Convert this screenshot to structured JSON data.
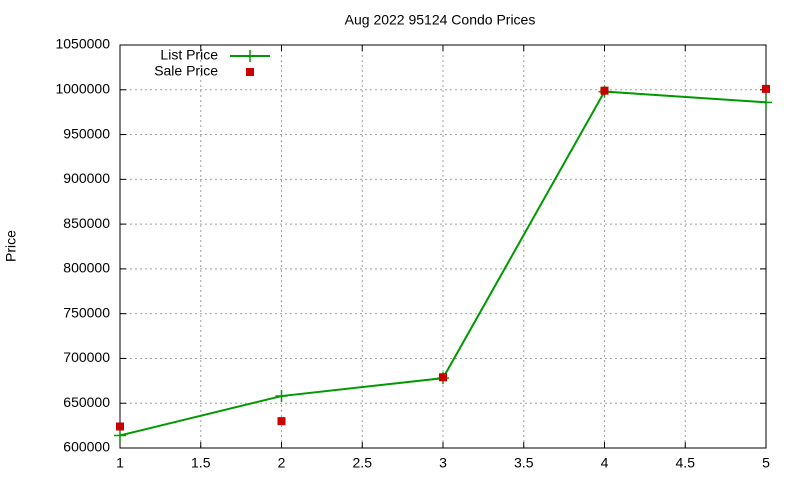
{
  "chart_data": {
    "type": "line",
    "title": "Aug 2022 95124 Condo Prices",
    "y_label": "Price",
    "x": [
      1,
      2,
      3,
      4,
      5
    ],
    "series": [
      {
        "name": "List Price",
        "color": "#009900",
        "style": "linespoints",
        "values": [
          614000,
          658000,
          678000,
          998000,
          986000
        ]
      },
      {
        "name": "Sale Price",
        "color": "#cc0000",
        "style": "points",
        "values": [
          624000,
          630000,
          679000,
          999000,
          1001000
        ]
      }
    ],
    "xlim": [
      1,
      5
    ],
    "xticks": [
      1,
      1.5,
      2,
      2.5,
      3,
      3.5,
      4,
      4.5,
      5
    ],
    "ylim": [
      600000,
      1050000
    ],
    "yticks": [
      600000,
      650000,
      700000,
      750000,
      800000,
      850000,
      900000,
      950000,
      1000000,
      1050000
    ],
    "grid": true,
    "legend": "top-left"
  }
}
